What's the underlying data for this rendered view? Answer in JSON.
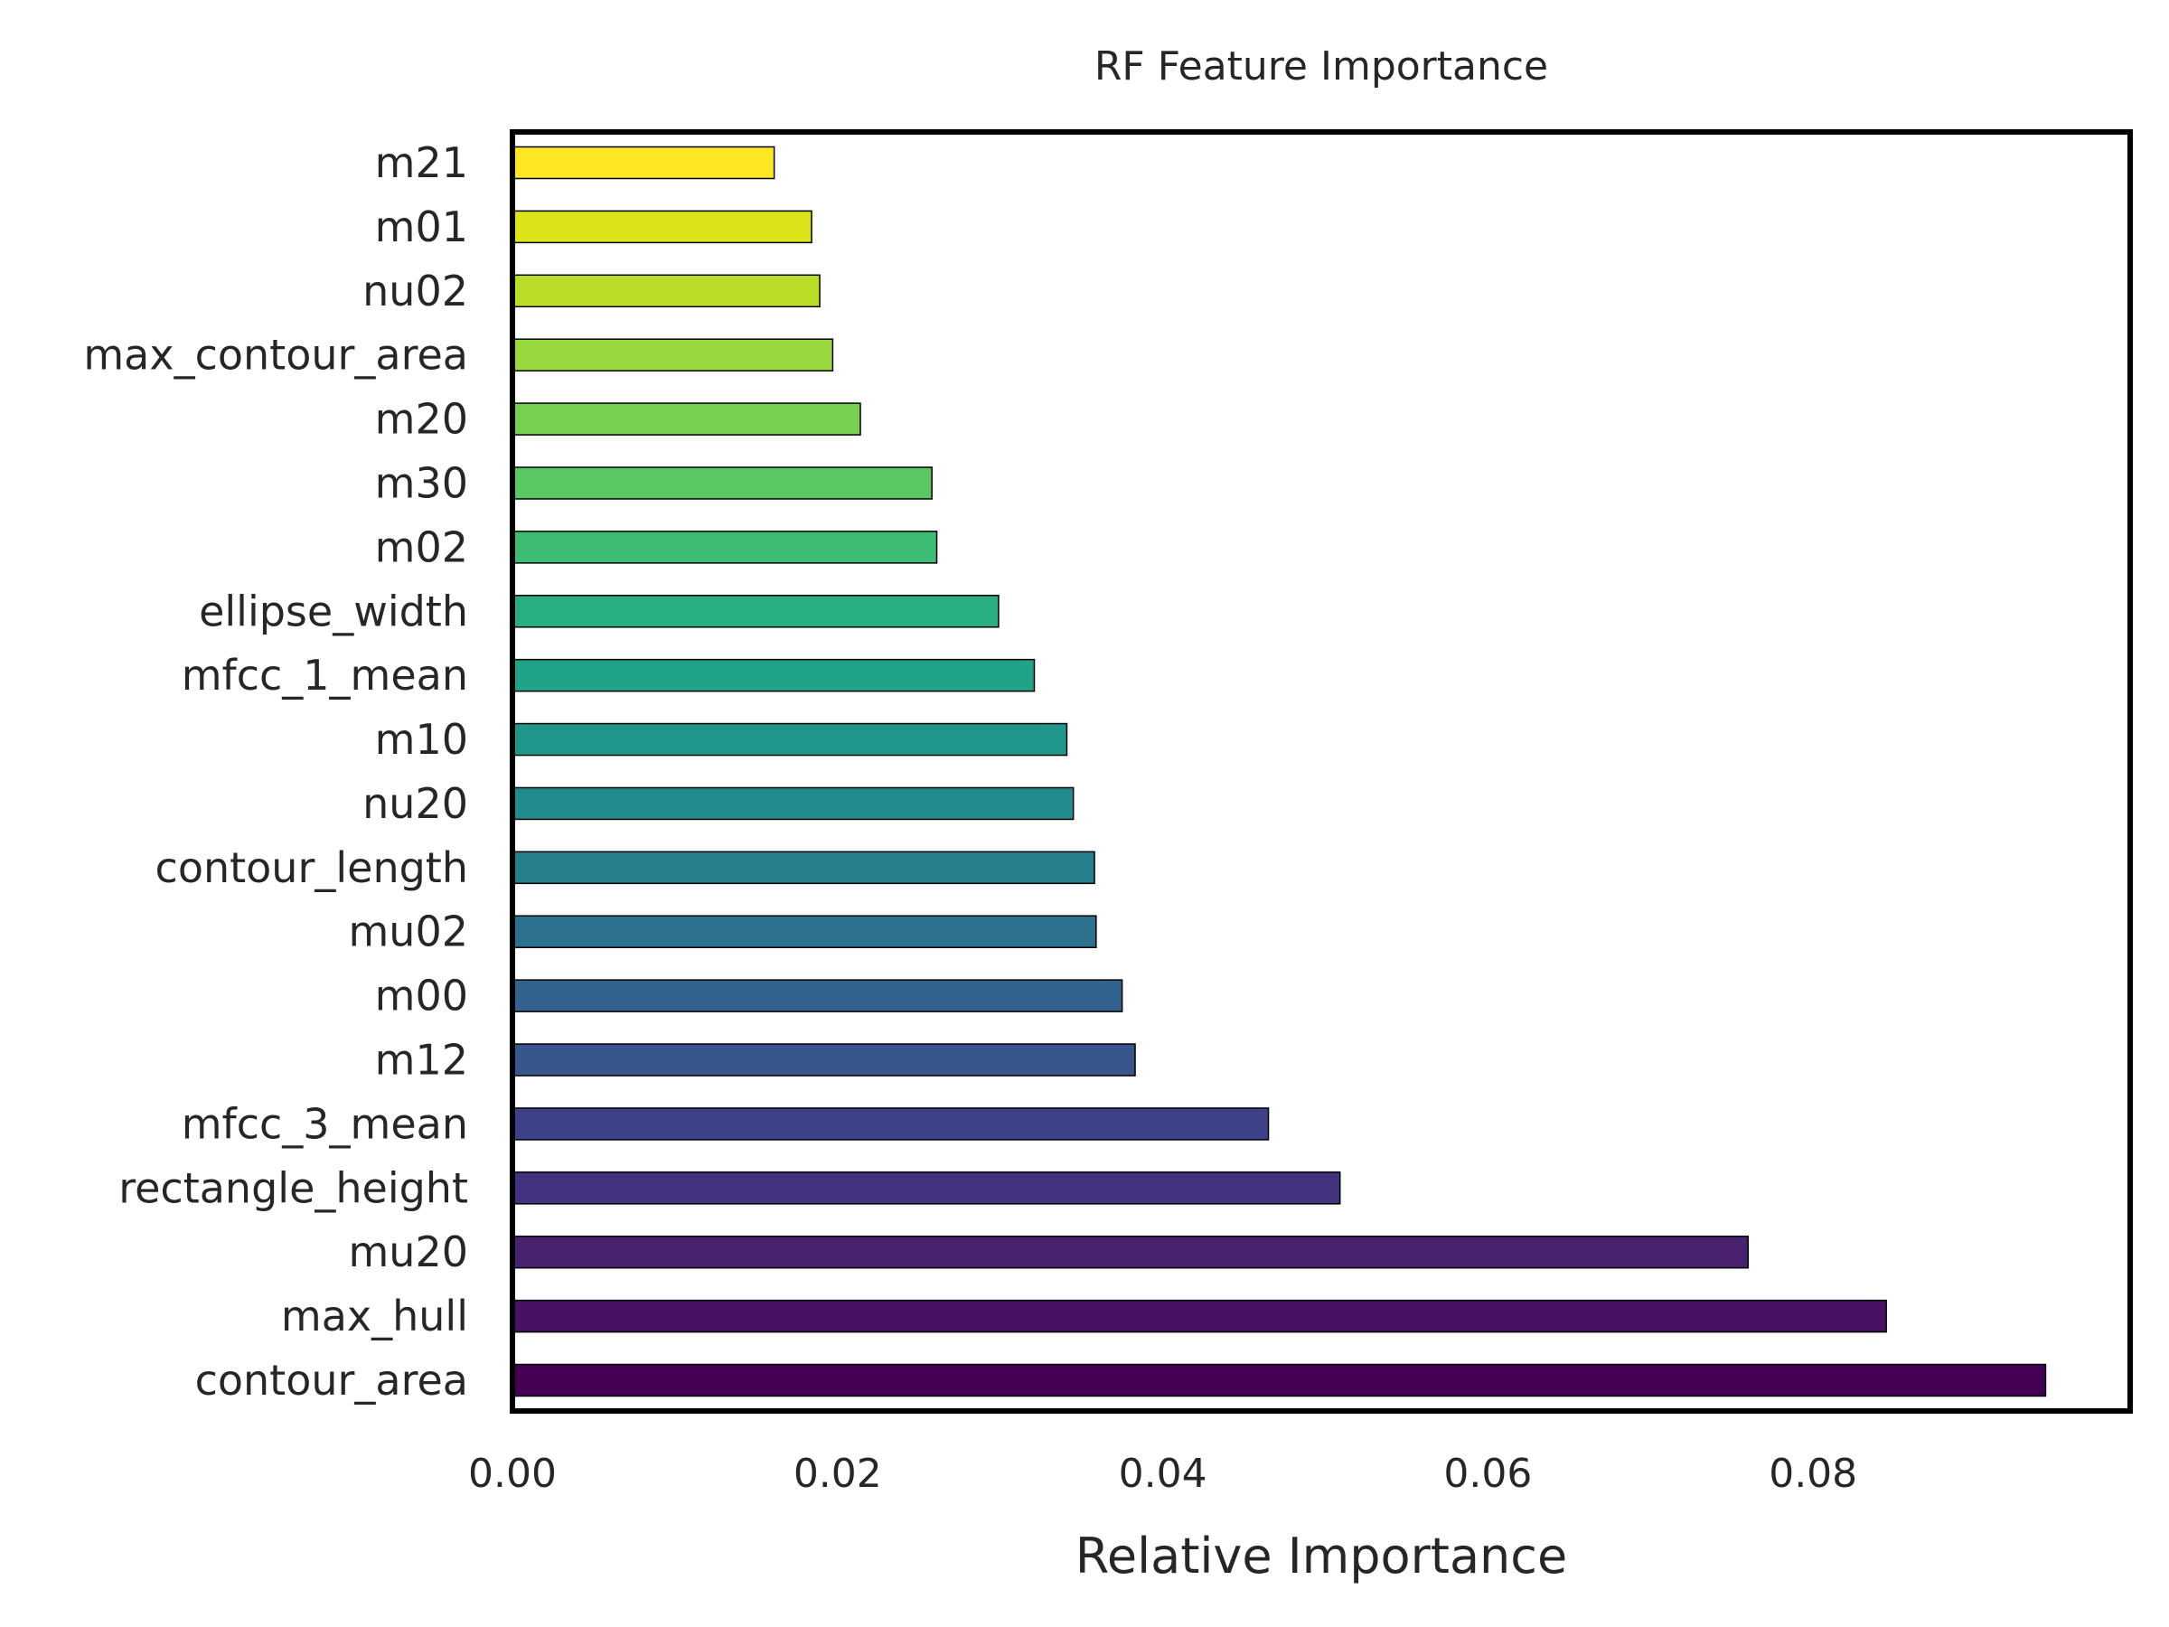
{
  "chart_data": {
    "type": "bar",
    "orientation": "horizontal",
    "title": "RF Feature Importance",
    "xlabel": "Relative Importance",
    "ylabel": "",
    "xlim": [
      0,
      0.0995
    ],
    "xticks": [
      0.0,
      0.02,
      0.04,
      0.06,
      0.08
    ],
    "xtick_labels": [
      "0.00",
      "0.02",
      "0.04",
      "0.06",
      "0.08"
    ],
    "grid": false,
    "categories": [
      "contour_area",
      "max_hull",
      "mu20",
      "rectangle_height",
      "mfcc_3_mean",
      "m12",
      "m00",
      "mu02",
      "contour_length",
      "nu20",
      "m10",
      "mfcc_1_mean",
      "ellipse_width",
      "m02",
      "m30",
      "m20",
      "max_contour_area",
      "nu02",
      "m01",
      "m21"
    ],
    "values": [
      0.0943,
      0.0845,
      0.076,
      0.0509,
      0.0465,
      0.0383,
      0.0375,
      0.0359,
      0.0358,
      0.0345,
      0.0341,
      0.0321,
      0.0299,
      0.0261,
      0.0258,
      0.0214,
      0.0197,
      0.0189,
      0.0184,
      0.0161
    ],
    "colors": [
      "#440154",
      "#471063",
      "#48226F",
      "#433280",
      "#3D4288",
      "#37568C",
      "#32628D",
      "#2C718E",
      "#277F8E",
      "#228B8D",
      "#1F978B",
      "#20A386",
      "#29AF7F",
      "#3EBC74",
      "#5AC764",
      "#78D052",
      "#98D83E",
      "#BADE28",
      "#DCE319",
      "#FDE725"
    ]
  }
}
